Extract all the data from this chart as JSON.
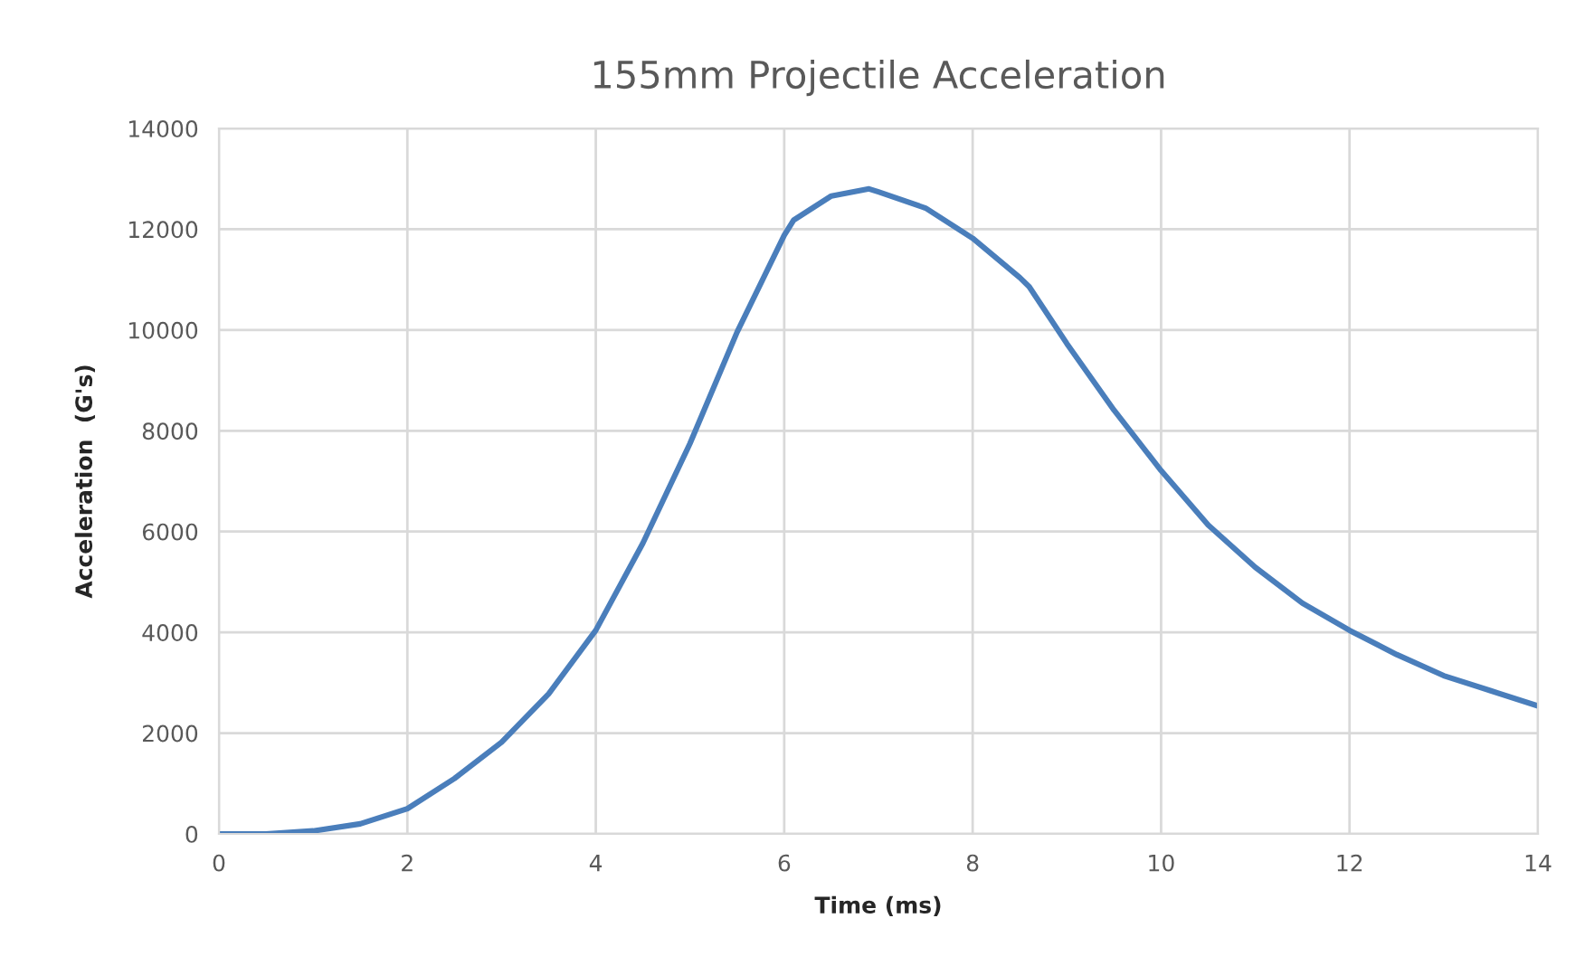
{
  "chart_data": {
    "type": "line",
    "title": "155mm Projectile Acceleration",
    "xlabel": "Time (ms)",
    "ylabel": "Acceleration  (G's)",
    "x": [
      0,
      0.5,
      1,
      1.5,
      2,
      2.5,
      3,
      3.5,
      4,
      4.5,
      5,
      5.5,
      6,
      6.1,
      6.5,
      6.9,
      7,
      7.5,
      8,
      8.5,
      8.6,
      9,
      9.5,
      10,
      10.5,
      11,
      11.5,
      12,
      12.5,
      13,
      13.5,
      14
    ],
    "series": [
      {
        "color": "#4a7ebb",
        "values": [
          0,
          0,
          60,
          200,
          500,
          1100,
          1820,
          2780,
          4040,
          5770,
          7750,
          9960,
          11880,
          12180,
          12660,
          12800,
          12740,
          12420,
          11820,
          11040,
          10860,
          9730,
          8410,
          7210,
          6130,
          5290,
          4580,
          4040,
          3560,
          3140,
          2840,
          2540
        ]
      }
    ],
    "xlim": [
      0,
      14
    ],
    "xticks": [
      0,
      2,
      4,
      6,
      8,
      10,
      12,
      14
    ],
    "ylim": [
      0,
      14000
    ],
    "yticks": [
      0,
      2000,
      4000,
      6000,
      8000,
      10000,
      12000,
      14000
    ],
    "grid": true,
    "marker": "none",
    "line_style": "solid"
  }
}
